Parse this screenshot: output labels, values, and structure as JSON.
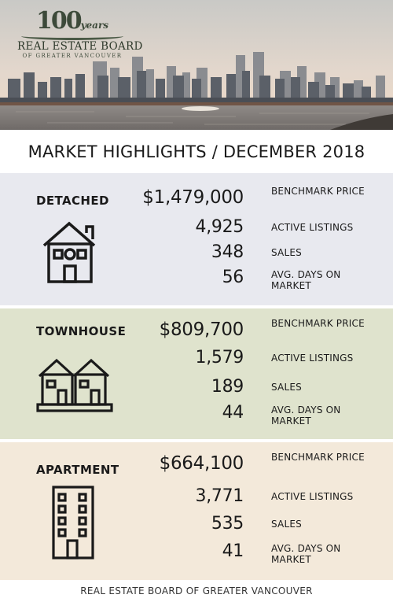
{
  "logo": {
    "anniversary": "100",
    "years": "years",
    "name": "REAL ESTATE BOARD",
    "subtitle": "OF GREATER VANCOUVER"
  },
  "title": "MARKET HIGHLIGHTS / DECEMBER 2018",
  "colors": {
    "detached_bg": "#e8e9ef",
    "townhouse_bg": "#dfe3cd",
    "apartment_bg": "#f3e9da"
  },
  "sections": [
    {
      "label": "DETACHED",
      "icon": "house-icon",
      "stats": [
        {
          "value": "$1,479,000",
          "label": "BENCHMARK PRICE"
        },
        {
          "value": "4,925",
          "label": "ACTIVE LISTINGS"
        },
        {
          "value": "348",
          "label": "SALES"
        },
        {
          "value": "56",
          "label": "AVG. DAYS ON MARKET"
        }
      ]
    },
    {
      "label": "TOWNHOUSE",
      "icon": "townhouse-icon",
      "stats": [
        {
          "value": "$809,700",
          "label": "BENCHMARK PRICE"
        },
        {
          "value": "1,579",
          "label": "ACTIVE LISTINGS"
        },
        {
          "value": "189",
          "label": "SALES"
        },
        {
          "value": "44",
          "label": "AVG. DAYS ON MARKET"
        }
      ]
    },
    {
      "label": "APARTMENT",
      "icon": "apartment-building-icon",
      "stats": [
        {
          "value": "$664,100",
          "label": "BENCHMARK PRICE"
        },
        {
          "value": "3,771",
          "label": "ACTIVE LISTINGS"
        },
        {
          "value": "535",
          "label": "SALES"
        },
        {
          "value": "41",
          "label": "AVG. DAYS ON MARKET"
        }
      ]
    }
  ],
  "footer": "REAL ESTATE BOARD OF GREATER VANCOUVER"
}
